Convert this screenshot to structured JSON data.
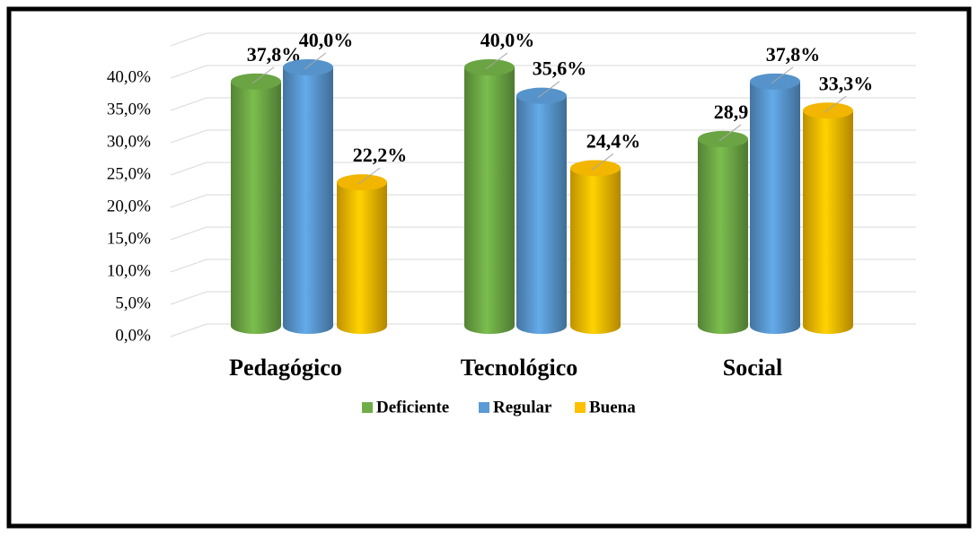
{
  "chart_data": {
    "type": "bar",
    "categories": [
      "Pedagógico",
      "Tecnológico",
      "Social"
    ],
    "series": [
      {
        "name": "Deficiente",
        "color": "#70ad47",
        "values": [
          37.8,
          40.0,
          28.9
        ],
        "value_labels": [
          "37,8%",
          "40,0%",
          "28,9%"
        ]
      },
      {
        "name": "Regular",
        "color": "#5b9bd5",
        "values": [
          40.0,
          35.6,
          37.8
        ],
        "value_labels": [
          "40,0%",
          "35,6%",
          "37,8%"
        ]
      },
      {
        "name": "Buena",
        "color": "#ffc000",
        "values": [
          22.2,
          24.4,
          33.3
        ],
        "value_labels": [
          "22,2%",
          "24,4%",
          "33,3%"
        ]
      }
    ],
    "ylim": [
      0,
      45
    ],
    "yticks": [
      {
        "value": 0,
        "label": "0,0%"
      },
      {
        "value": 5,
        "label": "5,0%"
      },
      {
        "value": 10,
        "label": "10,0%"
      },
      {
        "value": 15,
        "label": "15,0%"
      },
      {
        "value": 20,
        "label": "20,0%"
      },
      {
        "value": 25,
        "label": "25,0%"
      },
      {
        "value": 30,
        "label": "30,0%"
      },
      {
        "value": 35,
        "label": "35,0%"
      },
      {
        "value": 40,
        "label": "40,0%"
      }
    ],
    "grid": true,
    "legend": "bottom"
  }
}
